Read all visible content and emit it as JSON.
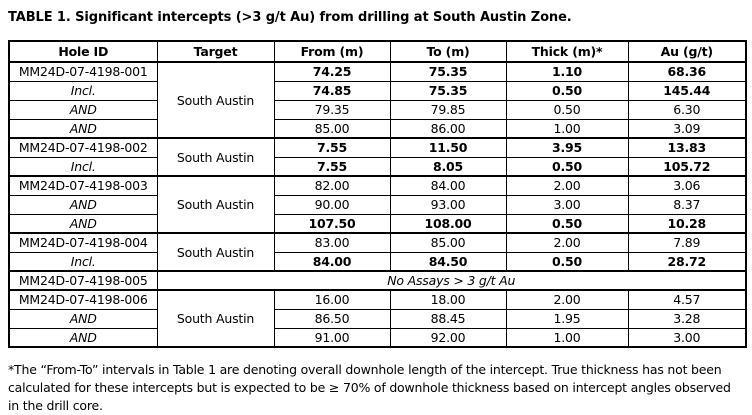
{
  "title": "TABLE 1. Significant intercepts (>3 g/t Au) from drilling at South Austin Zone.",
  "table": {
    "headers": [
      "Hole ID",
      "Target",
      "From (m)",
      "To (m)",
      "Thick (m)*",
      "Au (g/t)"
    ],
    "targets": [
      "South Austin",
      "South Austin",
      "South Austin",
      "South Austin",
      "South Austin"
    ],
    "rows": [
      {
        "hole": "MM24D-07-4198-001",
        "from": "74.25",
        "to": "75.35",
        "thick": "1.10",
        "au": "68.36"
      },
      {
        "hole": "Incl.",
        "from": "74.85",
        "to": "75.35",
        "thick": "0.50",
        "au": "145.44"
      },
      {
        "hole": "AND",
        "from": "79.35",
        "to": "79.85",
        "thick": "0.50",
        "au": "6.30"
      },
      {
        "hole": "AND",
        "from": "85.00",
        "to": "86.00",
        "thick": "1.00",
        "au": "3.09"
      },
      {
        "hole": "MM24D-07-4198-002",
        "from": "7.55",
        "to": "11.50",
        "thick": "3.95",
        "au": "13.83"
      },
      {
        "hole": "Incl.",
        "from": "7.55",
        "to": "8.05",
        "thick": "0.50",
        "au": "105.72"
      },
      {
        "hole": "MM24D-07-4198-003",
        "from": "82.00",
        "to": "84.00",
        "thick": "2.00",
        "au": "3.06"
      },
      {
        "hole": "AND",
        "from": "90.00",
        "to": "93.00",
        "thick": "3.00",
        "au": "8.37"
      },
      {
        "hole": "AND",
        "from": "107.50",
        "to": "108.00",
        "thick": "0.50",
        "au": "10.28"
      },
      {
        "hole": "MM24D-07-4198-004",
        "from": "83.00",
        "to": "85.00",
        "thick": "2.00",
        "au": "7.89"
      },
      {
        "hole": "Incl.",
        "from": "84.00",
        "to": "84.50",
        "thick": "0.50",
        "au": "28.72"
      },
      {
        "hole": "MM24D-07-4198-005",
        "note": "No Assays > 3 g/t Au"
      },
      {
        "hole": "MM24D-07-4198-006",
        "from": "16.00",
        "to": "18.00",
        "thick": "2.00",
        "au": "4.57"
      },
      {
        "hole": "AND",
        "from": "86.50",
        "to": "88.45",
        "thick": "1.95",
        "au": "3.28"
      },
      {
        "hole": "AND",
        "from": "91.00",
        "to": "92.00",
        "thick": "1.00",
        "au": "3.00"
      }
    ]
  },
  "footnote": "*The “From-To” intervals in Table 1 are denoting overall downhole length of the intercept. True thickness has not been calculated for these intercepts but is expected to be ≥ 70% of downhole thickness based on intercept angles observed in the drill core."
}
